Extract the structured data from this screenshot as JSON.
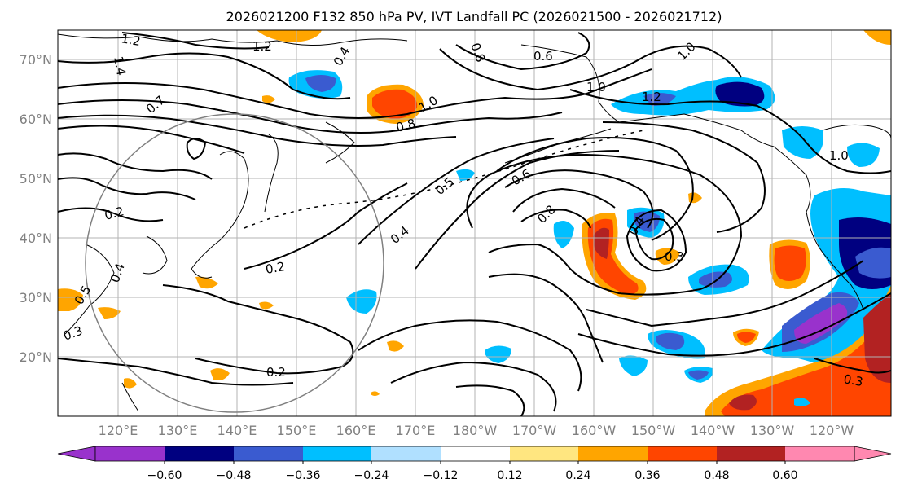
{
  "title": "2026021200 F132 850 hPa PV, IVT Landfall PC (2026021500 - 2026021712)",
  "map": {
    "lat_labels": [
      "70°N",
      "60°N",
      "50°N",
      "40°N",
      "30°N",
      "20°N"
    ],
    "lon_labels": [
      "120°E",
      "130°E",
      "140°E",
      "150°E",
      "160°E",
      "170°E",
      "180°W",
      "170°W",
      "160°W",
      "150°W",
      "140°W",
      "130°W",
      "120°W"
    ],
    "contour_labels": [
      "1.2",
      "1.4",
      "1.2",
      "0.4",
      "0.6",
      "1.0",
      "0.7",
      "1.0",
      "1.2",
      "0.8",
      "1.0",
      "0.2",
      "0.5",
      "0.6",
      "0.8",
      "0.4",
      "0.3",
      "0.4",
      "0.2",
      "0.4",
      "0.5",
      "0.3",
      "0.2",
      "0.3",
      "0.8",
      "1.0"
    ]
  },
  "colorbar": {
    "ticks": [
      "−0.60",
      "−0.48",
      "−0.36",
      "−0.24",
      "−0.12",
      "0.12",
      "0.24",
      "0.36",
      "0.48",
      "0.60"
    ],
    "colors": [
      "#9932cc",
      "#000080",
      "#3a5bd0",
      "#00bfff",
      "#b0e0ff",
      "#ffffff",
      "#ffe680",
      "#ffa500",
      "#ff4500",
      "#b22222",
      "#ff88b0"
    ],
    "extend": "both"
  }
}
